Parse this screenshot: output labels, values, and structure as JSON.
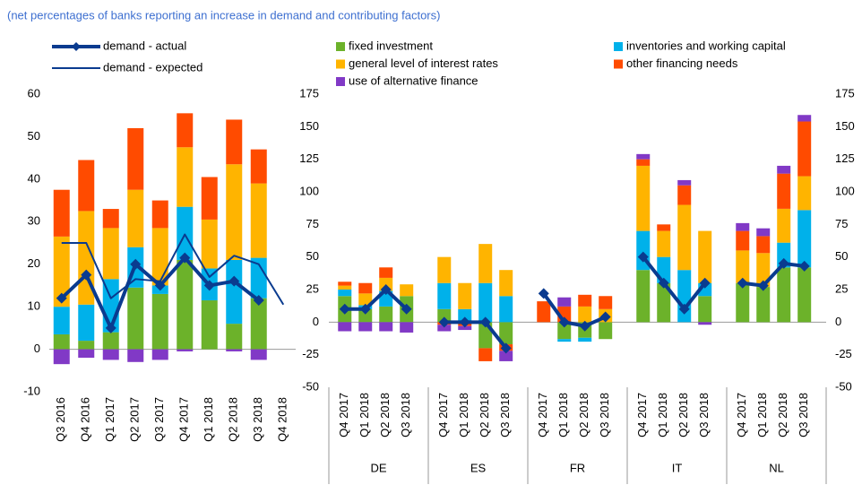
{
  "chart_data": [
    {
      "type": "bar",
      "subtitle": "(net percentages of banks reporting an increase in demand and contributing factors)",
      "categories": [
        "Q3 2016",
        "Q4 2016",
        "Q1 2017",
        "Q2 2017",
        "Q3 2017",
        "Q4 2017",
        "Q1 2018",
        "Q2 2018",
        "Q3 2018",
        "Q4 2018"
      ],
      "ylim": [
        -10,
        60
      ],
      "yticks": [
        -10,
        0,
        10,
        20,
        30,
        40,
        50,
        60
      ],
      "series": [
        {
          "name": "fixed investment",
          "color": "#6cb22a",
          "values": [
            3.5,
            2,
            4,
            14.5,
            13,
            21,
            11.5,
            6,
            12,
            null
          ]
        },
        {
          "name": "inventories and working capital",
          "color": "#00b1ea",
          "values": [
            6.5,
            8.5,
            12.5,
            9.5,
            2,
            12.5,
            7.5,
            15,
            9.5,
            null
          ]
        },
        {
          "name": "general level of interest rates",
          "color": "#ffb400",
          "values": [
            16.5,
            22,
            12,
            13.5,
            13.5,
            14,
            11.5,
            22.5,
            17.5,
            null
          ]
        },
        {
          "name": "other financing needs",
          "color": "#ff4b00",
          "values": [
            11,
            12,
            4.5,
            14.5,
            6.5,
            8,
            10,
            10.5,
            8,
            null
          ]
        },
        {
          "name": "use of alternative finance",
          "color": "#8139c6",
          "values": [
            -3.5,
            -2,
            -2.5,
            -3,
            -2.5,
            -0.5,
            0,
            -0.5,
            -2.5,
            null
          ]
        },
        {
          "type": "line",
          "name": "demand - actual",
          "color": "#0a3b8f",
          "width": 4,
          "marker": "diamond",
          "values": [
            12,
            17.5,
            5,
            20,
            15,
            21.5,
            15,
            16,
            11.5,
            null
          ]
        },
        {
          "type": "line",
          "name": "demand - expected",
          "color": "#0a3b8f",
          "width": 2,
          "values": [
            25,
            25,
            12,
            16.5,
            16,
            27,
            17,
            22,
            20,
            10.5
          ]
        }
      ]
    },
    {
      "type": "bar",
      "categories": [
        "Q4 2017",
        "Q1 2018",
        "Q2 2018",
        "Q3 2018",
        "Q4 2017",
        "Q1 2018",
        "Q2 2018",
        "Q3 2018",
        "Q4 2017",
        "Q1 2018",
        "Q2 2018",
        "Q3 2018",
        "Q4 2017",
        "Q1 2018",
        "Q2 2018",
        "Q3 2018",
        "Q4 2017",
        "Q1 2018",
        "Q2 2018",
        "Q3 2018"
      ],
      "groups": [
        "DE",
        "ES",
        "FR",
        "IT",
        "NL"
      ],
      "ylim": [
        -50,
        175
      ],
      "yticks": [
        -50,
        -25,
        0,
        25,
        50,
        75,
        100,
        125,
        150,
        175
      ],
      "series": [
        {
          "color": "#6cb22a",
          "values": [
            20,
            10,
            12,
            20,
            10,
            0,
            -20,
            -17,
            0,
            -13,
            -12,
            -13,
            40,
            30,
            0,
            20,
            30,
            27,
            42,
            42
          ]
        },
        {
          "color": "#00b1ea",
          "values": [
            5,
            3,
            12,
            0,
            20,
            10,
            30,
            20,
            0,
            -2,
            -3,
            0,
            30,
            20,
            40,
            10,
            0,
            0,
            19,
            44
          ]
        },
        {
          "color": "#ffb400",
          "values": [
            3,
            9,
            10,
            9,
            20,
            20,
            30,
            20,
            0,
            0,
            12,
            10,
            50,
            20,
            50,
            40,
            25,
            26,
            26,
            26
          ]
        },
        {
          "color": "#ff4b00",
          "values": [
            3,
            8,
            8,
            0,
            -2,
            -3,
            -10,
            -5,
            16,
            12,
            9,
            10,
            5,
            5,
            15,
            0,
            15,
            13,
            27,
            42
          ]
        },
        {
          "color": "#8139c6",
          "values": [
            -7,
            -7,
            -7,
            -8,
            -5,
            -3,
            0,
            -8,
            0,
            7,
            0,
            0,
            4,
            0,
            4,
            -2,
            6,
            6,
            6,
            5
          ]
        },
        {
          "type": "line",
          "color": "#0a3b8f",
          "width": 4,
          "marker": "diamond",
          "values": [
            10,
            10,
            25,
            10,
            0,
            0,
            0,
            -20,
            22,
            0,
            -3,
            4,
            50,
            30,
            10,
            30,
            30,
            28,
            45,
            43
          ]
        }
      ]
    }
  ]
}
